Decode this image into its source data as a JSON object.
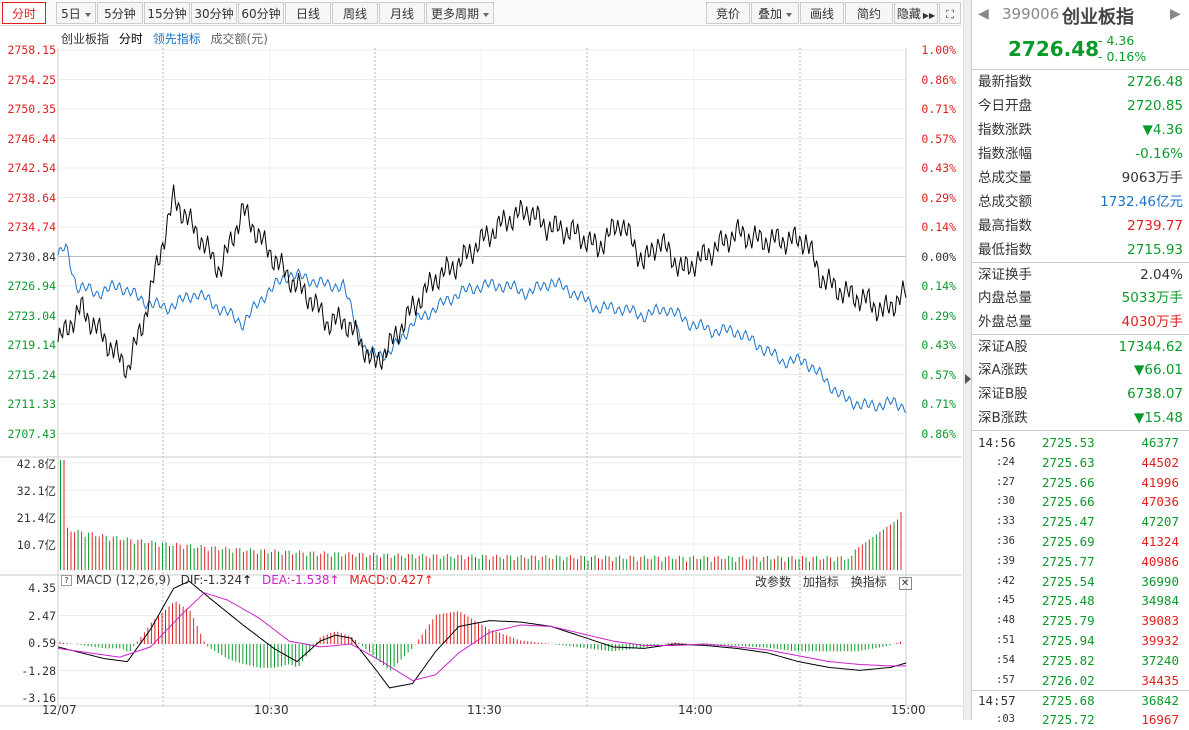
{
  "toolbar": {
    "left": [
      "分时",
      "5日",
      "5分钟",
      "15分钟",
      "30分钟",
      "60分钟",
      "日线",
      "周线",
      "月线",
      "更多周期"
    ],
    "right": [
      "竞价",
      "叠加",
      "画线",
      "简约",
      "隐藏"
    ]
  },
  "legend": {
    "name": "创业板指",
    "mode": "分时",
    "lead": "领先指标",
    "vol": "成交额(元)"
  },
  "price_axis": [
    "2758.15",
    "2754.25",
    "2750.35",
    "2746.44",
    "2742.54",
    "2738.64",
    "2734.74",
    "2730.84",
    "2726.94",
    "2723.04",
    "2719.14",
    "2715.24",
    "2711.33",
    "2707.43"
  ],
  "pct_axis": [
    "1.00%",
    "0.86%",
    "0.71%",
    "0.57%",
    "0.43%",
    "0.29%",
    "0.14%",
    "0.00%",
    "0.14%",
    "0.29%",
    "0.43%",
    "0.57%",
    "0.71%",
    "0.86%"
  ],
  "vol_axis": [
    "42.8亿",
    "32.1亿",
    "21.4亿",
    "10.7亿"
  ],
  "macd": {
    "title": "MACD (12,26,9)",
    "dif": "DIF:-1.324",
    "dea": "DEA:-1.538",
    "macd": "MACD:0.427",
    "axis": [
      "4.35",
      "2.47",
      "0.59",
      "-1.28",
      "-3.16"
    ],
    "tools": [
      "改参数",
      "加指标",
      "换指标"
    ]
  },
  "time_axis": [
    "12/07",
    "10:30",
    "11:30",
    "14:00",
    "15:00"
  ],
  "colors": {
    "up": "#e02020",
    "down": "#0a9a2a",
    "index": "#000000",
    "lead": "#1a73c8",
    "dea": "#cc22cc"
  },
  "quote": {
    "code": "399006",
    "name": "创业板指",
    "price": "2726.48",
    "change": "- 4.36",
    "pct": "- 0.16%",
    "rows": [
      {
        "k": "最新指数",
        "v": "2726.48",
        "c": "green"
      },
      {
        "k": "今日开盘",
        "v": "2720.85",
        "c": "green"
      },
      {
        "k": "指数涨跌",
        "v": "▼4.36",
        "c": "green"
      },
      {
        "k": "指数涨幅",
        "v": "-0.16%",
        "c": "green"
      },
      {
        "k": "总成交量",
        "v": "9063万手",
        "c": ""
      },
      {
        "k": "总成交额",
        "v": "1732.46亿元",
        "c": "blue"
      },
      {
        "k": "最高指数",
        "v": "2739.77",
        "c": "red"
      },
      {
        "k": "最低指数",
        "v": "2715.93",
        "c": "green"
      },
      {
        "k": "深证换手",
        "v": "2.04%",
        "c": "",
        "sep": true
      },
      {
        "k": "内盘总量",
        "v": "5033万手",
        "c": "green"
      },
      {
        "k": "外盘总量",
        "v": "4030万手",
        "c": "red"
      },
      {
        "k": "深证A股",
        "v": "17344.62",
        "c": "green",
        "sep": true
      },
      {
        "k": "深A涨跌",
        "v": "▼66.01",
        "c": "green"
      },
      {
        "k": "深证B股",
        "v": "6738.07",
        "c": "green"
      },
      {
        "k": "深B涨跌",
        "v": "▼15.48",
        "c": "green"
      }
    ],
    "ticks": [
      {
        "t": "14:56",
        "p": "2725.53",
        "q": "46377",
        "c": "green",
        "big": true
      },
      {
        "t": ":24",
        "p": "2725.63",
        "q": "44502",
        "c": "red"
      },
      {
        "t": ":27",
        "p": "2725.66",
        "q": "41996",
        "c": "red"
      },
      {
        "t": ":30",
        "p": "2725.66",
        "q": "47036",
        "c": "red"
      },
      {
        "t": ":33",
        "p": "2725.47",
        "q": "47207",
        "c": "green"
      },
      {
        "t": ":36",
        "p": "2725.69",
        "q": "41324",
        "c": "red"
      },
      {
        "t": ":39",
        "p": "2725.77",
        "q": "40986",
        "c": "red"
      },
      {
        "t": ":42",
        "p": "2725.54",
        "q": "36990",
        "c": "green"
      },
      {
        "t": ":45",
        "p": "2725.48",
        "q": "34984",
        "c": "green"
      },
      {
        "t": ":48",
        "p": "2725.79",
        "q": "39083",
        "c": "red"
      },
      {
        "t": ":51",
        "p": "2725.94",
        "q": "39932",
        "c": "red"
      },
      {
        "t": ":54",
        "p": "2725.82",
        "q": "37240",
        "c": "green"
      },
      {
        "t": ":57",
        "p": "2726.02",
        "q": "34435",
        "c": "red"
      },
      {
        "t": "14:57",
        "p": "2725.68",
        "q": "36842",
        "c": "green",
        "big": true,
        "sep": true
      },
      {
        "t": ":03",
        "p": "2725.72",
        "q": "16967",
        "c": "red"
      }
    ]
  }
}
